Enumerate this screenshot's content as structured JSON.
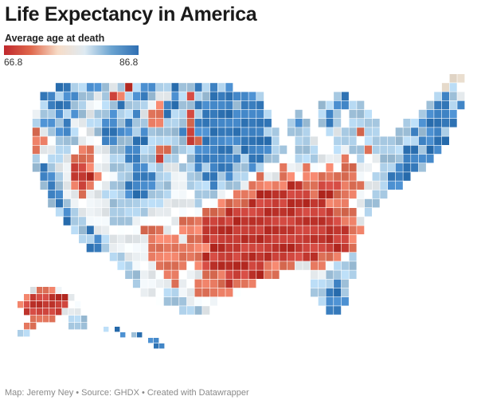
{
  "header": {
    "title": "Life Expectancy in America",
    "legend_title": "Average age at death"
  },
  "legend": {
    "min_label": "66.8",
    "max_label": "86.8",
    "min_value": 66.8,
    "max_value": 86.8,
    "colors": [
      "#c0282d",
      "#e0694d",
      "#f7dcc7",
      "#deeaf2",
      "#6aa3d0",
      "#2f6fb3"
    ]
  },
  "map": {
    "type": "choropleth",
    "subject": "US counties, life expectancy",
    "regions_summary": [
      {
        "region": "Deep South / Appalachia",
        "tendency": "low (red)"
      },
      {
        "region": "Upper Midwest / Plains",
        "tendency": "high (blue)"
      },
      {
        "region": "Mountain West / Colorado",
        "tendency": "high (blue)"
      },
      {
        "region": "Northeast",
        "tendency": "high (blue)"
      },
      {
        "region": "South Florida",
        "tendency": "high (blue)"
      },
      {
        "region": "Alaska",
        "tendency": "low (red)"
      },
      {
        "region": "Hawaii",
        "tendency": "high (blue)"
      },
      {
        "region": "Native American reservations (SD, MT, AZ)",
        "tendency": "very low (dark red)"
      }
    ],
    "grid": [
      "..........................................................##.",
      ".......BBbbBBbwbRbBBbbBbbBbBbB...........................#bw.",
      ".....BBbBBbbwbRrbBBbwwBbRbbBBBBBBb.........bB...........bBbw..",
      ".....bBBBbbwwbbBbbbwrBBbbBBBBBbBBB.......bbBBbb........bBBbB..",
      "....wbbBbBbwbbBbbBwrrBbbRbBBBBBBBBb...b..bBb.bbb......bBBBB...",
      "....bBBbBwwbbBBbBbbrrbbbrBBBBBBBBBB..bBb.bBb.bbbb...bbBBBBB...",
      "....rwbBBbwwbBBBBbBbbbbBRBBBBBBBBBbb.bbb..bwbbrbb..bbBbBBb....",
      "....rrwbbbwwwBBbbBBbbbbbRrBBBBBBBBBb..bbw..bbbwbbbbbbbBBBB....",
      "....rwwbbwrrwwbbBBbbrrbbbBBBBBbBBBBbb.bbb..bwbbrbbbbBBbBB.....",
      "....bwbbwrrrwwbbBBbbRbbwbBBBBBBbBBbbwwbbbwwwrwbwwbbbBBBB......",
      "....bBbwwRRrwwbbbBBbbwwbbBbBBBbbBbwwrwwrwwrwrrwwwbbBBBb.......",
      ".....BBbwRRRrwwbbBBBbbwwbbBBbBbbwrwwrrwrrrrrrrwwbbBBB.........",
      ".....bBbwrRrwwbbBBBBbbwwbbbBbbbwrrrrrRRrrRRRrrrwwbBB..........",
      "......BBwwrwwbbbBBBbbbwwwbbbwwrrrRRRRRRRrRRrrrwwbb............",
      "......bBbwwwwwbbbbbbbwwwwbwwrrrrRRRRRRRRRRrrrwwbb.............",
      ".......bBbwwwwbbbbbwwwwwwwrrrRRRRRRRRRRRRRRrrrwb..............",
      "........BbbwwwbbbwwwwwwrrrRRRRRRRRRRRRRRRRRRrrw...............",
      ".........bbBwwwwwwrrrwwrrrRRRRRRRRRRRRRRRRRRRrr...............",
      "..........bbBbwwwwwrrrrwrrRRRRRRRRRRRRRRRRRRRrw...............",
      "...........BBbwwwwwrrrrrrrrRRRRRRRRRRRRRRRRRRr................",
      "..............bbwwwrrrrrrrRRRRRRRRRRRRRRRrrrwb................",
      "...............bbwwwrrrrwrRRRRRRRRrrrrwwrrwbbb................",
      "................bbwwwrrwwwrrrRRRRRrr....wwbbbb................",
      ".................bwwwwrwwrrrrRrrr.......bbbBb.................",
      "..................wwwbbwwrrrrrw.........bbBBb.................",
      "....................wbbbwwww.............bBBB.................",
      ".......................bbbw...............BB.................."
    ],
    "alaska_grid": [
      "..wrrrw....",
      ".rRRRRRRw..",
      "rRRRRRRRww.",
      ".RRRRRRwww.",
      "..rrrr.wbbb",
      ".rr.....bbbw",
      "bb.........."
    ],
    "hawaii_grid": [
      "b.B.........",
      "...B.bB.....",
      "........BB..",
      ".........BB."
    ],
    "palette": {
      "R": "#c43a32",
      "r": "#e5785f",
      "w": "#eef3f6",
      "b": "#a9cbe4",
      "B": "#3b7fc0",
      "#": "#f3e7d8"
    }
  },
  "footer": {
    "credit": "Map: Jeremy Ney • Source: GHDX • Created with Datawrapper"
  }
}
